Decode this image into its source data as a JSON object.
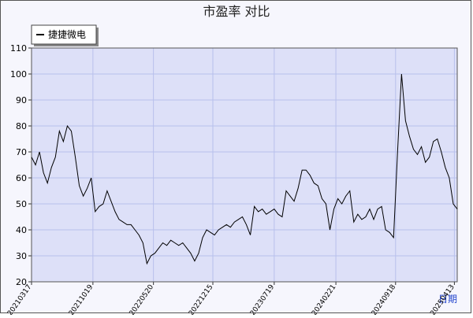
{
  "chart_data": {
    "type": "line",
    "title": "市盈率  对比",
    "xlabel": "日期",
    "x": [
      "20210317",
      "20210331",
      "20210414",
      "20210428",
      "20210512",
      "20210526",
      "20210609",
      "20210623",
      "20210707",
      "20210721",
      "20210804",
      "20210818",
      "20210901",
      "20210915",
      "20210929",
      "20211013",
      "20211027",
      "20211110",
      "20211124",
      "20211208",
      "20211222",
      "20220105",
      "20220119",
      "20220202",
      "20220216",
      "20220302",
      "20220316",
      "20220330",
      "20220413",
      "20220427",
      "20220511",
      "20220525",
      "20220608",
      "20220622",
      "20220706",
      "20220720",
      "20220803",
      "20220817",
      "20220831",
      "20220914",
      "20220928",
      "20221012",
      "20221026",
      "20221109",
      "20221123",
      "20221207",
      "20221221",
      "20230104",
      "20230118",
      "20230201",
      "20230215",
      "20230301",
      "20230315",
      "20230329",
      "20230412",
      "20230426",
      "20230510",
      "20230524",
      "20230607",
      "20230621",
      "20230705",
      "20230719",
      "20230802",
      "20230816",
      "20230830",
      "20230913",
      "20230927",
      "20231011",
      "20231025",
      "20231108",
      "20231122",
      "20231206",
      "20231220",
      "20240103",
      "20240117",
      "20240131",
      "20240214",
      "20240228",
      "20240313",
      "20240327",
      "20240410",
      "20240424",
      "20240508",
      "20240522",
      "20240605",
      "20240619",
      "20240703",
      "20240717",
      "20240731",
      "20240814",
      "20240828",
      "20240911",
      "20240925",
      "20241009",
      "20241023",
      "20241106",
      "20241120",
      "20241204",
      "20241218",
      "20250101",
      "20250115",
      "20250129",
      "20250212",
      "20250226",
      "20250312",
      "20250326",
      "20250409",
      "20250423"
    ],
    "series": [
      {
        "name": "捷捷微电",
        "color": "#000000",
        "values": [
          68,
          65,
          70,
          62,
          58,
          64,
          68,
          78,
          74,
          80,
          78,
          68,
          57,
          53,
          56,
          60,
          47,
          49,
          50,
          55,
          51,
          47,
          44,
          43,
          42,
          42,
          40,
          38,
          35,
          27,
          30,
          31,
          33,
          35,
          34,
          36,
          35,
          34,
          35,
          33,
          31,
          28,
          31,
          37,
          40,
          39,
          38,
          40,
          41,
          42,
          41,
          43,
          44,
          45,
          42,
          38,
          49,
          47,
          48,
          46,
          47,
          48,
          46,
          45,
          55,
          53,
          51,
          56,
          63,
          63,
          61,
          58,
          57,
          52,
          50,
          40,
          48,
          52,
          50,
          53,
          55,
          43,
          46,
          44,
          45,
          48,
          44,
          48,
          49,
          40,
          39,
          37,
          70,
          100,
          82,
          76,
          71,
          69,
          72,
          66,
          68,
          74,
          75,
          70,
          64,
          60,
          50,
          48
        ]
      }
    ],
    "xlim": [
      "20210317",
      "20250423"
    ],
    "xticks": [
      "20210317",
      "20211019",
      "20220520",
      "20221215",
      "20230719",
      "20240221",
      "20240918",
      "20250413"
    ],
    "ylim": [
      20,
      110
    ],
    "yticks": [
      20,
      30,
      40,
      50,
      60,
      70,
      80,
      90,
      100,
      110
    ],
    "grid": true
  }
}
